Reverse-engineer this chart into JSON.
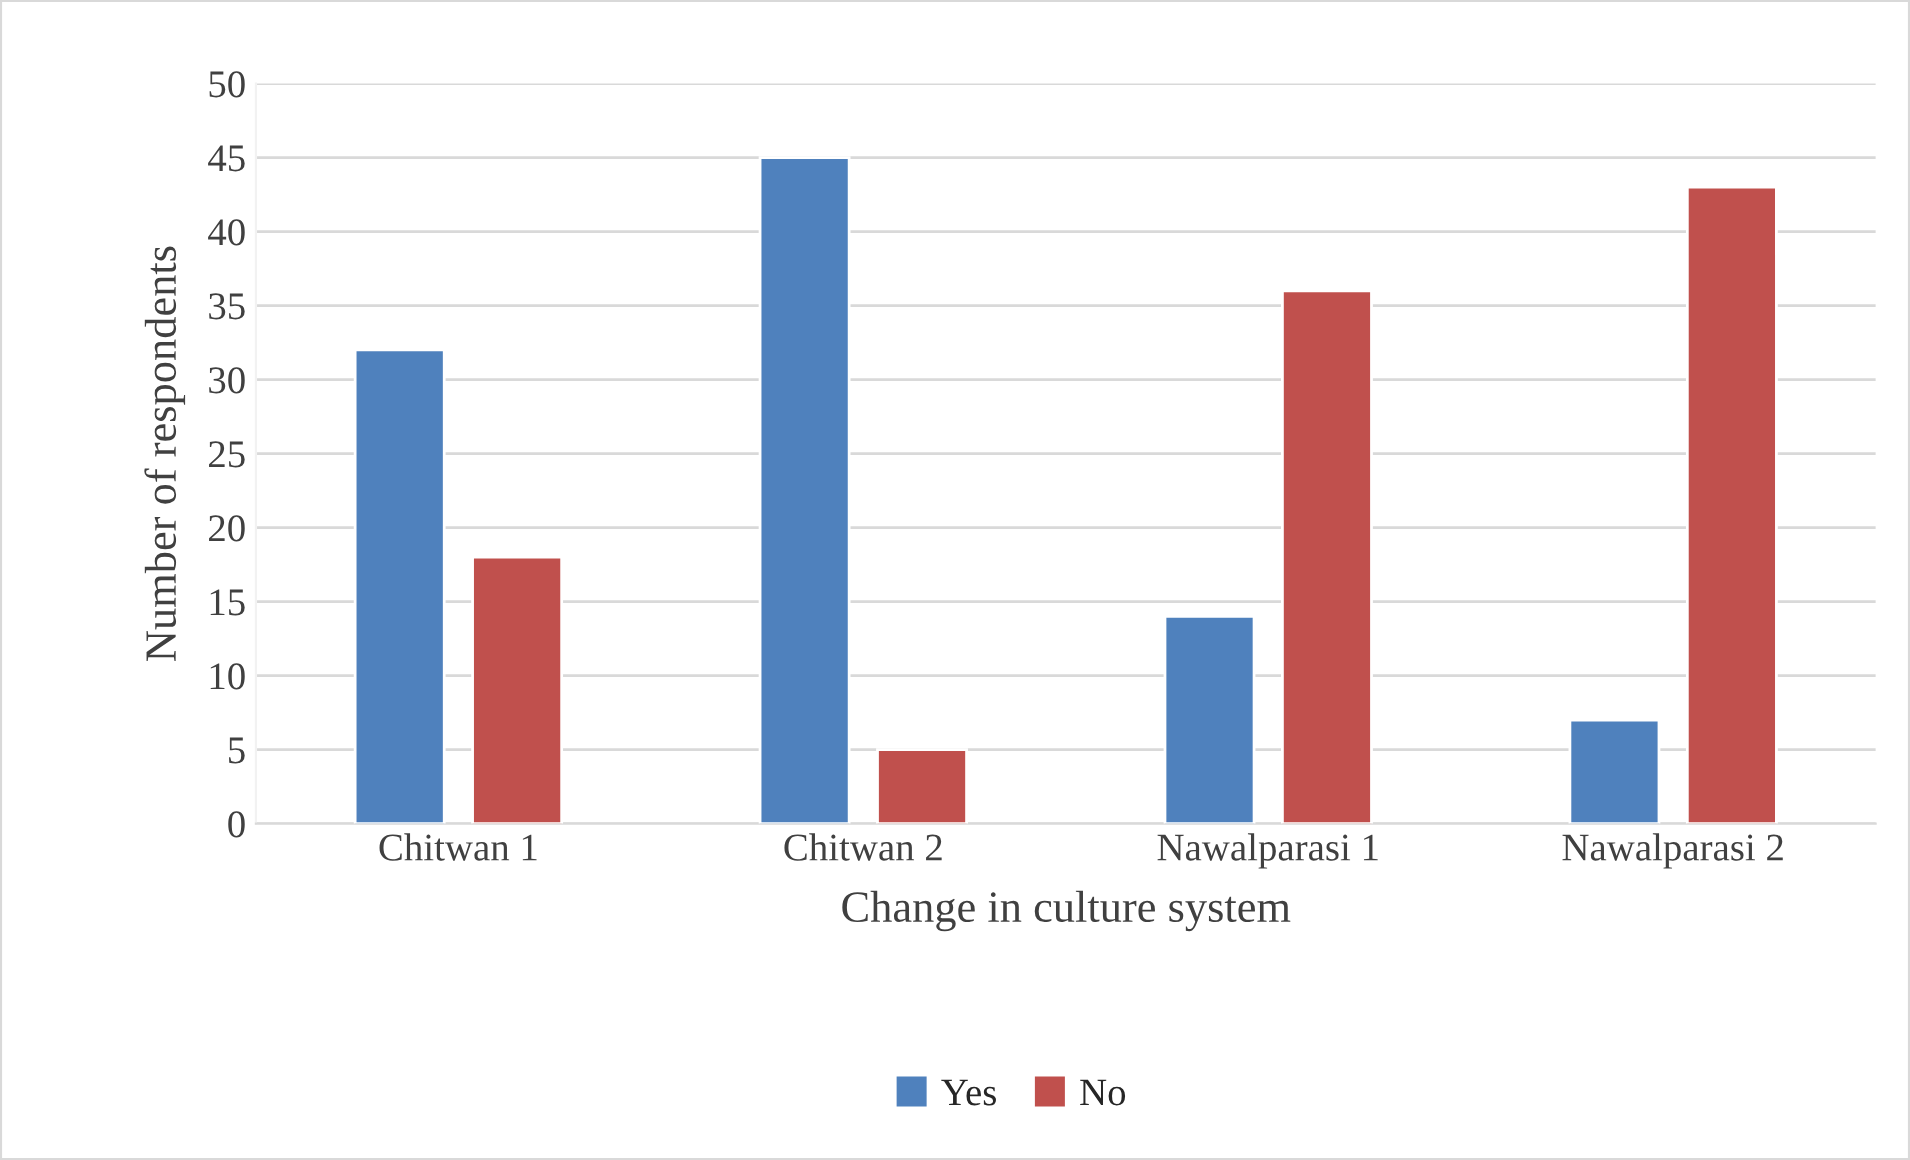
{
  "chart_data": {
    "type": "bar",
    "xlabel": "Change in culture system",
    "ylabel": "Number of respondents",
    "categories": [
      "Chitwan 1",
      "Chitwan 2",
      "Nawalparasi 1",
      "Nawalparasi 2"
    ],
    "series": [
      {
        "name": "Yes",
        "color": "#4f81bd",
        "values": [
          32,
          45,
          14,
          7
        ]
      },
      {
        "name": "No",
        "color": "#c0504d",
        "values": [
          18,
          5,
          36,
          43
        ]
      }
    ],
    "ylim": [
      0,
      50
    ],
    "yticks": [
      0,
      5,
      10,
      15,
      20,
      25,
      30,
      35,
      40,
      45,
      50
    ],
    "grid": "y",
    "legend": "bottom"
  }
}
